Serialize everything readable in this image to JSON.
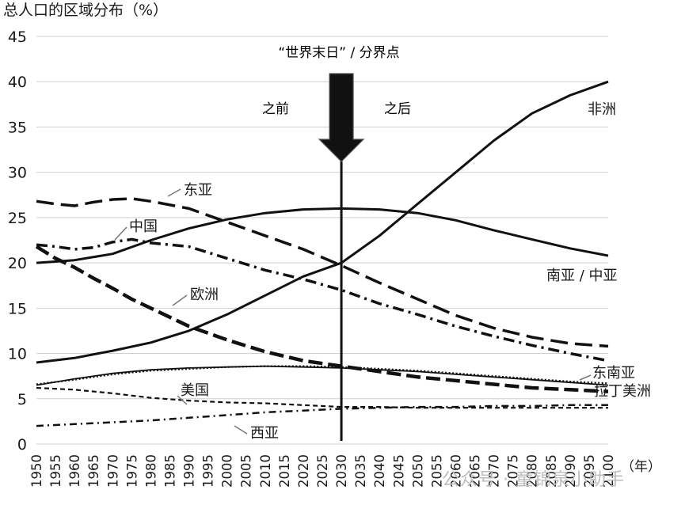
{
  "chart_data": {
    "type": "line",
    "title": "总人口的区域分布（%）",
    "xlabel": "（年）",
    "ylabel": "",
    "xlim": [
      1950,
      2100
    ],
    "ylim": [
      0,
      45
    ],
    "yticks": [
      0,
      5,
      10,
      15,
      20,
      25,
      30,
      35,
      40,
      45
    ],
    "xticks": [
      1950,
      1955,
      1960,
      1965,
      1970,
      1975,
      1980,
      1985,
      1990,
      1995,
      2000,
      2005,
      2010,
      2015,
      2020,
      2025,
      2030,
      2035,
      2040,
      2045,
      2050,
      2055,
      2060,
      2065,
      2070,
      2075,
      2080,
      2085,
      2090,
      2095,
      2100
    ],
    "grid": "horizontal",
    "annotations": {
      "marker_title": "“世界末日” / 分界点",
      "before": "之前",
      "after": "之后",
      "marker_year": 2030
    },
    "series": [
      {
        "name": "非洲",
        "style": "solid",
        "x": [
          1950,
          1960,
          1970,
          1980,
          1990,
          2000,
          2010,
          2020,
          2030,
          2040,
          2050,
          2060,
          2070,
          2080,
          2090,
          2100
        ],
        "values": [
          9,
          9.5,
          10.3,
          11.2,
          12.5,
          14.3,
          16.4,
          18.5,
          20,
          23,
          26.5,
          30,
          33.5,
          36.5,
          38.5,
          40
        ]
      },
      {
        "name": "南亚 / 中亚",
        "style": "solid",
        "x": [
          1950,
          1960,
          1970,
          1980,
          1990,
          2000,
          2010,
          2020,
          2030,
          2040,
          2050,
          2060,
          2070,
          2080,
          2090,
          2100
        ],
        "values": [
          20,
          20.3,
          21,
          22.5,
          23.8,
          24.8,
          25.5,
          25.9,
          26,
          25.9,
          25.5,
          24.7,
          23.6,
          22.6,
          21.6,
          20.8
        ]
      },
      {
        "name": "东亚",
        "style": "longdash",
        "x": [
          1950,
          1955,
          1960,
          1965,
          1970,
          1975,
          1980,
          1990,
          2000,
          2010,
          2020,
          2030,
          2040,
          2050,
          2060,
          2070,
          2080,
          2090,
          2100
        ],
        "values": [
          26.8,
          26.5,
          26.3,
          26.7,
          27,
          27.1,
          26.8,
          26,
          24.5,
          23,
          21.5,
          19.7,
          17.8,
          16,
          14.2,
          12.8,
          11.8,
          11.1,
          10.8
        ]
      },
      {
        "name": "中国",
        "style": "dashdot",
        "x": [
          1950,
          1955,
          1960,
          1965,
          1970,
          1975,
          1980,
          1990,
          2000,
          2010,
          2020,
          2030,
          2040,
          2050,
          2060,
          2070,
          2080,
          2090,
          2100
        ],
        "values": [
          22,
          21.8,
          21.5,
          21.7,
          22.3,
          22.6,
          22.2,
          21.8,
          20.5,
          19.2,
          18.2,
          17,
          15.5,
          14.3,
          13,
          11.9,
          10.9,
          10,
          9.2
        ]
      },
      {
        "name": "欧洲",
        "style": "thickdash",
        "x": [
          1950,
          1955,
          1960,
          1965,
          1970,
          1975,
          1980,
          1990,
          2000,
          2010,
          2020,
          2030,
          2040,
          2050,
          2060,
          2070,
          2080,
          2090,
          2100
        ],
        "values": [
          21.8,
          20.5,
          19.5,
          18.3,
          17.2,
          16,
          15,
          13,
          11.5,
          10.2,
          9.2,
          8.6,
          8,
          7.4,
          7,
          6.6,
          6.2,
          6,
          5.8
        ]
      },
      {
        "name": "东南亚",
        "style": "solid-thin",
        "x": [
          1950,
          1960,
          1970,
          1980,
          1990,
          2000,
          2010,
          2020,
          2030,
          2040,
          2050,
          2060,
          2070,
          2080,
          2090,
          2100
        ],
        "values": [
          6.5,
          7.2,
          7.8,
          8.2,
          8.4,
          8.5,
          8.6,
          8.5,
          8.4,
          8.2,
          8,
          7.7,
          7.4,
          7.1,
          6.8,
          6.5
        ]
      },
      {
        "name": "拉丁美洲",
        "style": "dotted",
        "x": [
          1950,
          1960,
          1970,
          1980,
          1990,
          2000,
          2010,
          2020,
          2030,
          2040,
          2050,
          2060,
          2070,
          2080,
          2090,
          2100
        ],
        "values": [
          6.6,
          7.1,
          7.7,
          8.1,
          8.3,
          8.5,
          8.6,
          8.6,
          8.5,
          8.3,
          8.1,
          7.8,
          7.5,
          7.2,
          6.9,
          6.7
        ]
      },
      {
        "name": "美国",
        "style": "shortdash",
        "x": [
          1950,
          1960,
          1970,
          1980,
          1990,
          2000,
          2010,
          2020,
          2030,
          2040,
          2050,
          2060,
          2070,
          2080,
          2090,
          2100
        ],
        "values": [
          6.2,
          6,
          5.6,
          5.1,
          4.8,
          4.6,
          4.5,
          4.3,
          4.1,
          4.1,
          4,
          4,
          4,
          4,
          4,
          4
        ]
      },
      {
        "name": "西亚",
        "style": "dashdot-thin",
        "x": [
          1950,
          1960,
          1970,
          1980,
          1990,
          2000,
          2010,
          2020,
          2030,
          2040,
          2050,
          2060,
          2070,
          2080,
          2090,
          2100
        ],
        "values": [
          2,
          2.2,
          2.4,
          2.6,
          2.9,
          3.2,
          3.5,
          3.7,
          3.9,
          4,
          4.1,
          4.1,
          4.2,
          4.2,
          4.3,
          4.3
        ]
      }
    ],
    "watermark": "公众号 · 童锦泉小助手"
  }
}
